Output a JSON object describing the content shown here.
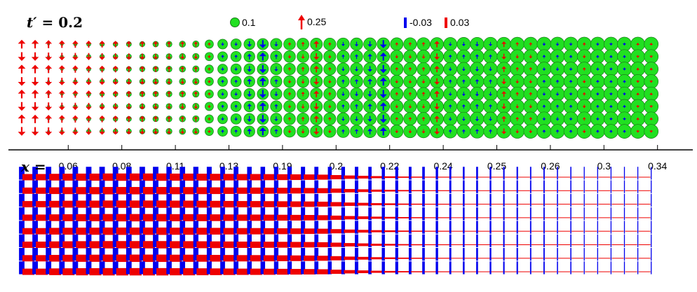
{
  "title": {
    "var": "t′ = ",
    "value": "0.2"
  },
  "axis": {
    "var": "x =",
    "ticks": [
      "0.06",
      "0.08",
      "0.11",
      "0.13",
      "0.19",
      "0.2",
      "0.22",
      "0.24",
      "0.25",
      "0.26",
      "0.3",
      "0.34"
    ]
  },
  "legend": {
    "circle_label": "0.1",
    "arrow_label": "0.25",
    "neg_bond_label": "-0.03",
    "pos_bond_label": "0.03"
  },
  "colors": {
    "site": "#21e021",
    "site_edge": "#1a7a1a",
    "negative": "#0000ee",
    "positive": "#ee0000"
  },
  "columns": [
    {
      "circle": 0.0,
      "spin": 0.25,
      "bond_v": -0.03,
      "bond_h": 0.03
    },
    {
      "circle": 0.01,
      "spin": 0.24,
      "bond_v": -0.03,
      "bond_h": 0.03
    },
    {
      "circle": 0.015,
      "spin": 0.22,
      "bond_v": -0.03,
      "bond_h": 0.032
    },
    {
      "circle": 0.02,
      "spin": 0.2,
      "bond_v": -0.03,
      "bond_h": 0.033
    },
    {
      "circle": 0.025,
      "spin": 0.19,
      "bond_v": -0.03,
      "bond_h": 0.034
    },
    {
      "circle": 0.03,
      "spin": 0.18,
      "bond_v": -0.03,
      "bond_h": 0.034
    },
    {
      "circle": 0.032,
      "spin": 0.17,
      "bond_v": -0.03,
      "bond_h": 0.035
    },
    {
      "circle": 0.034,
      "spin": 0.16,
      "bond_v": -0.03,
      "bond_h": 0.035
    },
    {
      "circle": 0.036,
      "spin": 0.15,
      "bond_v": -0.03,
      "bond_h": 0.035
    },
    {
      "circle": 0.038,
      "spin": 0.14,
      "bond_v": -0.03,
      "bond_h": 0.035
    },
    {
      "circle": 0.04,
      "spin": 0.13,
      "bond_v": -0.03,
      "bond_h": 0.035
    },
    {
      "circle": 0.042,
      "spin": 0.12,
      "bond_v": -0.029,
      "bond_h": 0.034
    },
    {
      "circle": 0.044,
      "spin": 0.11,
      "bond_v": -0.029,
      "bond_h": 0.034
    },
    {
      "circle": 0.046,
      "spin": 0.1,
      "bond_v": -0.028,
      "bond_h": 0.033
    },
    {
      "circle": 0.06,
      "spin": 0.02,
      "bond_v": -0.027,
      "bond_h": 0.032
    },
    {
      "circle": 0.07,
      "spin": -0.03,
      "bond_v": -0.026,
      "bond_h": 0.031
    },
    {
      "circle": 0.075,
      "spin": -0.04,
      "bond_v": -0.026,
      "bond_h": 0.03
    },
    {
      "circle": 0.078,
      "spin": -0.12,
      "bond_v": -0.025,
      "bond_h": 0.03
    },
    {
      "circle": 0.08,
      "spin": -0.22,
      "bond_v": -0.025,
      "bond_h": 0.029
    },
    {
      "circle": 0.082,
      "spin": -0.08,
      "bond_v": -0.024,
      "bond_h": 0.028
    },
    {
      "circle": 0.084,
      "spin": 0.04,
      "bond_v": -0.024,
      "bond_h": 0.027
    },
    {
      "circle": 0.085,
      "spin": 0.07,
      "bond_v": -0.023,
      "bond_h": 0.026
    },
    {
      "circle": 0.086,
      "spin": 0.16,
      "bond_v": -0.022,
      "bond_h": 0.024
    },
    {
      "circle": 0.087,
      "spin": 0.04,
      "bond_v": -0.021,
      "bond_h": 0.02
    },
    {
      "circle": 0.088,
      "spin": -0.06,
      "bond_v": -0.02,
      "bond_h": 0.016
    },
    {
      "circle": 0.089,
      "spin": -0.08,
      "bond_v": -0.019,
      "bond_h": 0.013
    },
    {
      "circle": 0.09,
      "spin": -0.12,
      "bond_v": -0.018,
      "bond_h": 0.01
    },
    {
      "circle": 0.09,
      "spin": -0.22,
      "bond_v": -0.017,
      "bond_h": 0.008
    },
    {
      "circle": 0.091,
      "spin": 0.04,
      "bond_v": -0.016,
      "bond_h": 0.006
    },
    {
      "circle": 0.092,
      "spin": 0.05,
      "bond_v": -0.015,
      "bond_h": 0.005
    },
    {
      "circle": 0.093,
      "spin": 0.06,
      "bond_v": -0.014,
      "bond_h": 0.004
    },
    {
      "circle": 0.094,
      "spin": 0.15,
      "bond_v": -0.013,
      "bond_h": 0.004
    },
    {
      "circle": 0.095,
      "spin": -0.05,
      "bond_v": -0.011,
      "bond_h": 0.003
    },
    {
      "circle": 0.096,
      "spin": -0.06,
      "bond_v": -0.01,
      "bond_h": 0.003
    },
    {
      "circle": 0.097,
      "spin": -0.08,
      "bond_v": -0.01,
      "bond_h": 0.003
    },
    {
      "circle": 0.098,
      "spin": -0.06,
      "bond_v": -0.009,
      "bond_h": 0.003
    },
    {
      "circle": 0.098,
      "spin": 0.12,
      "bond_v": -0.008,
      "bond_h": 0.003
    },
    {
      "circle": 0.099,
      "spin": 0.05,
      "bond_v": -0.008,
      "bond_h": 0.003
    },
    {
      "circle": 0.099,
      "spin": 0.04,
      "bond_v": -0.007,
      "bond_h": 0.003
    },
    {
      "circle": 0.1,
      "spin": -0.03,
      "bond_v": -0.007,
      "bond_h": 0.003
    },
    {
      "circle": 0.1,
      "spin": -0.04,
      "bond_v": -0.006,
      "bond_h": 0.003
    },
    {
      "circle": 0.1,
      "spin": -0.02,
      "bond_v": -0.006,
      "bond_h": 0.003
    },
    {
      "circle": 0.1,
      "spin": 0.03,
      "bond_v": -0.005,
      "bond_h": 0.003
    },
    {
      "circle": 0.1,
      "spin": -0.02,
      "bond_v": -0.005,
      "bond_h": 0.003
    },
    {
      "circle": 0.1,
      "spin": -0.01,
      "bond_v": -0.005,
      "bond_h": 0.003
    },
    {
      "circle": 0.1,
      "spin": -0.01,
      "bond_v": -0.005,
      "bond_h": 0.003
    },
    {
      "circle": 0.1,
      "spin": 0.0,
      "bond_v": -0.005,
      "bond_h": 0.003
    },
    {
      "circle": 0.1,
      "spin": 0.0,
      "bond_v": -0.005,
      "bond_h": 0.003
    }
  ]
}
